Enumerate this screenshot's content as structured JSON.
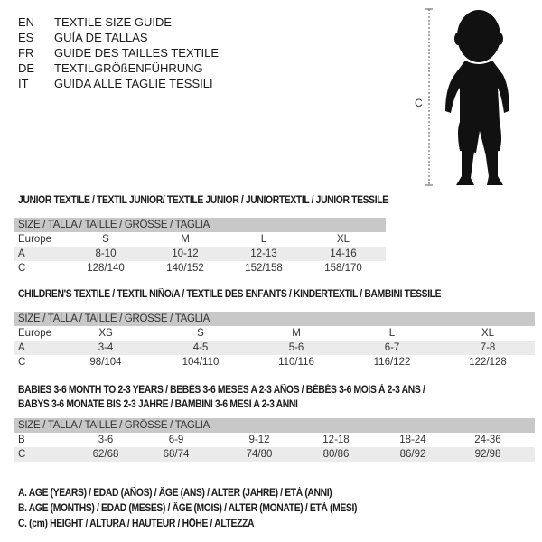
{
  "languages": [
    {
      "code": "EN",
      "label": "TEXTILE SIZE GUIDE"
    },
    {
      "code": "ES",
      "label": "GUÍA DE TALLAS"
    },
    {
      "code": "FR",
      "label": "GUIDE DES TAILLES TEXTILE"
    },
    {
      "code": "DE",
      "label": "TEXTILGRÖßENFÜHRUNG"
    },
    {
      "code": "IT",
      "label": "GUIDA ALLE TAGLIE TESSILI"
    }
  ],
  "figure": {
    "measure_label": "C",
    "icon": "baby-silhouette"
  },
  "junior": {
    "title": "JUNIOR TEXTILE / TEXTIL JUNIOR/ TEXTILE JUNIOR / JUNIORTEXTIL / JUNIOR TESSILE",
    "header": "SIZE / TALLA / TAILLE / GRÖSSE / TAGLIA",
    "rows": [
      {
        "label": "Europe",
        "cells": [
          "S",
          "M",
          "L",
          "XL"
        ]
      },
      {
        "label": "A",
        "cells": [
          "8-10",
          "10-12",
          "12-13",
          "14-16"
        ]
      },
      {
        "label": "C",
        "cells": [
          "128/140",
          "140/152",
          "152/158",
          "158/170"
        ]
      }
    ]
  },
  "children": {
    "title": "CHILDREN'S TEXTILE / TEXTIL NIÑO/A / TEXTILE DES ENFANTS / KINDERTEXTIL / BAMBINI TESSILE",
    "header": "SIZE / TALLA / TAILLE / GRÖSSE / TAGLIA",
    "rows": [
      {
        "label": "Europe",
        "cells": [
          "XS",
          "S",
          "M",
          "L",
          "XL"
        ]
      },
      {
        "label": "A",
        "cells": [
          "3-4",
          "4-5",
          "5-6",
          "6-7",
          "7-8"
        ]
      },
      {
        "label": "C",
        "cells": [
          "98/104",
          "104/110",
          "110/116",
          "116/122",
          "122/128"
        ]
      }
    ]
  },
  "babies": {
    "title_line1": "BABIES 3-6 MONTH TO 2-3 YEARS / BEBÉS 3-6 MESES A 2-3 AÑOS / BÉBÉS 3-6 MOIS À 2-3 ANS /",
    "title_line2": "BABYS 3-6 MONATE BIS 2-3 JAHRE / BAMBINI 3-6 MESI A 2-3 ANNI",
    "header": "SIZE / TALLA / TAILLE / GRÖSSE / TAGLIA",
    "rows": [
      {
        "label": "B",
        "cells": [
          "3-6",
          "6-9",
          "9-12",
          "12-18",
          "18-24",
          "24-36"
        ]
      },
      {
        "label": "C",
        "cells": [
          "62/68",
          "68/74",
          "74/80",
          "80/86",
          "86/92",
          "92/98"
        ]
      }
    ]
  },
  "legend": [
    "A. AGE (YEARS) / EDAD (AÑOS) / ÂGE (ANS) / ALTER (JAHRE) / ETÀ (ANNI)",
    "B. AGE (MONTHS) / EDAD (MESES) / ÂGE (MOIS) / ALTER (MONATE) / ETÀ (MESI)",
    "C. (cm) HEIGHT / ALTURA / HAUTEUR / HÖHE / ALTEZZA"
  ]
}
